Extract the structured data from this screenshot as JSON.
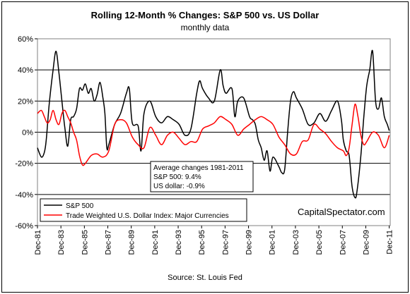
{
  "chart_data": {
    "type": "line",
    "title": "Rolling 12-Month %  Changes: S&P 500 vs. US Dollar",
    "subtitle": "monthly data",
    "source": "Source:  St. Louis Fed",
    "watermark": "CapitalSpectator.com",
    "ylim": [
      -60,
      60
    ],
    "yticks": [
      60,
      40,
      20,
      0,
      -20,
      -40,
      -60
    ],
    "ytick_labels": [
      "60%",
      "40%",
      "20%",
      "0%",
      "-20%",
      "-40%",
      "-60%"
    ],
    "xlim": [
      1981.917,
      2012.0
    ],
    "xticks": [
      1981.917,
      1983.917,
      1985.917,
      1987.917,
      1989.917,
      1991.917,
      1993.917,
      1995.917,
      1997.917,
      1999.917,
      2001.917,
      2003.917,
      2005.917,
      2007.917,
      2009.917,
      2011.917
    ],
    "xtick_labels": [
      "Dec-81",
      "Dec-83",
      "Dec-85",
      "Dec-87",
      "Dec-89",
      "Dec-91",
      "Dec-93",
      "Dec-95",
      "Dec-97",
      "Dec-99",
      "Dec-01",
      "Dec-03",
      "Dec-05",
      "Dec-07",
      "Dec-09",
      "Dec-11"
    ],
    "grid": "horizontal",
    "legend_position": "bottom-left",
    "annotation": [
      "Average changes 1981-2011",
      "S&P 500: 9.4%",
      "US dollar: -0.9%"
    ],
    "series": [
      {
        "name": "S&P 500",
        "color": "#000000",
        "x": [
          1981.917,
          1982.25,
          1982.5,
          1982.667,
          1982.917,
          1983.25,
          1983.5,
          1983.75,
          1984.0,
          1984.25,
          1984.5,
          1984.75,
          1985.0,
          1985.25,
          1985.5,
          1985.75,
          1986.0,
          1986.25,
          1986.5,
          1986.75,
          1987.0,
          1987.25,
          1987.5,
          1987.667,
          1987.833,
          1988.0,
          1988.5,
          1989.0,
          1989.5,
          1989.75,
          1990.0,
          1990.5,
          1990.75,
          1991.0,
          1991.5,
          1992.0,
          1992.5,
          1993.0,
          1993.5,
          1994.0,
          1994.5,
          1995.0,
          1995.5,
          1995.75,
          1996.0,
          1996.5,
          1997.0,
          1997.5,
          1997.75,
          1998.0,
          1998.5,
          1998.75,
          1999.0,
          1999.5,
          2000.0,
          2000.25,
          2000.5,
          2000.75,
          2001.0,
          2001.25,
          2001.5,
          2001.75,
          2002.0,
          2002.5,
          2002.75,
          2003.0,
          2003.25,
          2003.5,
          2003.75,
          2004.0,
          2004.5,
          2005.0,
          2005.5,
          2006.0,
          2006.5,
          2007.0,
          2007.5,
          2007.833,
          2008.0,
          2008.25,
          2008.5,
          2008.75,
          2009.0,
          2009.167,
          2009.5,
          2009.75,
          2010.0,
          2010.25,
          2010.5,
          2010.75,
          2011.0,
          2011.25,
          2011.5,
          2011.75,
          2011.917
        ],
        "values": [
          -10,
          -16,
          -13,
          -5,
          18,
          40,
          52,
          38,
          20,
          3,
          -9,
          8,
          10,
          15,
          28,
          27,
          31,
          25,
          28,
          20,
          24,
          32,
          22,
          12,
          -10,
          -8,
          5,
          12,
          25,
          28,
          6,
          4,
          -12,
          12,
          20,
          10,
          6,
          10,
          8,
          5,
          -2,
          2,
          25,
          33,
          28,
          22,
          20,
          40,
          30,
          25,
          28,
          10,
          20,
          22,
          10,
          8,
          5,
          -5,
          -10,
          -18,
          -12,
          -25,
          -16,
          -22,
          -26,
          -24,
          0,
          20,
          26,
          22,
          15,
          5,
          6,
          12,
          7,
          14,
          20,
          8,
          -5,
          -12,
          -15,
          -35,
          -42,
          -38,
          -15,
          10,
          30,
          40,
          52,
          20,
          15,
          22,
          10,
          5,
          1
        ]
      },
      {
        "name": "Trade Weighted U.S. Dollar Index: Major Currencies",
        "color": "#ff0000",
        "x": [
          1981.917,
          1982.25,
          1982.5,
          1982.75,
          1983.0,
          1983.25,
          1983.5,
          1983.75,
          1984.0,
          1984.25,
          1984.5,
          1984.75,
          1985.0,
          1985.25,
          1985.5,
          1985.75,
          1986.0,
          1986.5,
          1987.0,
          1987.5,
          1988.0,
          1988.5,
          1989.0,
          1989.5,
          1990.0,
          1990.5,
          1991.0,
          1991.5,
          1992.0,
          1992.5,
          1993.0,
          1993.5,
          1994.0,
          1994.5,
          1995.0,
          1995.5,
          1996.0,
          1996.5,
          1997.0,
          1997.5,
          1998.0,
          1998.5,
          1999.0,
          1999.5,
          2000.0,
          2000.5,
          2001.0,
          2001.5,
          2002.0,
          2002.5,
          2003.0,
          2003.5,
          2004.0,
          2004.5,
          2005.0,
          2005.5,
          2006.0,
          2006.5,
          2007.0,
          2007.5,
          2008.0,
          2008.25,
          2008.5,
          2008.75,
          2009.0,
          2009.25,
          2009.5,
          2009.75,
          2010.0,
          2010.5,
          2011.0,
          2011.5,
          2011.917
        ],
        "values": [
          12,
          14,
          10,
          6,
          8,
          14,
          8,
          5,
          12,
          14,
          10,
          6,
          0,
          -5,
          -15,
          -21,
          -20,
          -15,
          -14,
          -16,
          -12,
          5,
          8,
          6,
          -3,
          -8,
          -10,
          3,
          -2,
          -8,
          -2,
          0,
          -4,
          -8,
          -6,
          -6,
          2,
          4,
          6,
          10,
          8,
          5,
          -2,
          2,
          5,
          8,
          10,
          8,
          5,
          -3,
          -8,
          -14,
          -14,
          -6,
          -5,
          5,
          2,
          -1,
          -6,
          -10,
          -12,
          -15,
          -10,
          5,
          18,
          10,
          -2,
          -8,
          -6,
          0,
          -2,
          -10,
          -2
        ]
      }
    ]
  }
}
